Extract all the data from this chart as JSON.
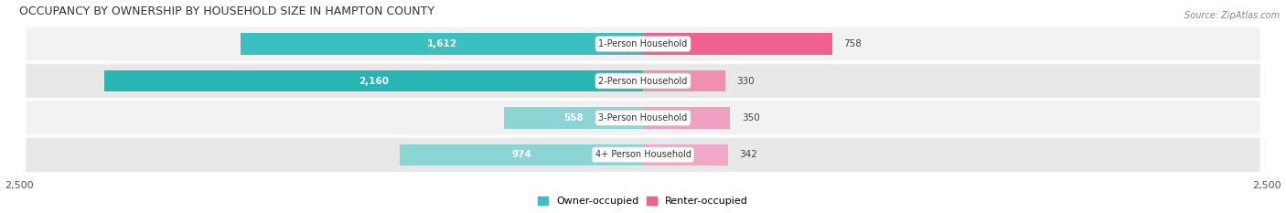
{
  "title": "OCCUPANCY BY OWNERSHIP BY HOUSEHOLD SIZE IN HAMPTON COUNTY",
  "source": "Source: ZipAtlas.com",
  "categories": [
    "1-Person Household",
    "2-Person Household",
    "3-Person Household",
    "4+ Person Household"
  ],
  "owner_values": [
    1612,
    2160,
    558,
    974
  ],
  "renter_values": [
    758,
    330,
    350,
    342
  ],
  "owner_colors": [
    "#3dbfbf",
    "#2ab5b5",
    "#8dd5d5",
    "#8dd5d5"
  ],
  "renter_colors": [
    "#f06090",
    "#f090b0",
    "#f0a0c0",
    "#f0a8c8"
  ],
  "row_bg_colors": [
    "#f2f2f2",
    "#e8e8e8",
    "#f2f2f2",
    "#e8e8e8"
  ],
  "axis_max": 2500,
  "title_fontsize": 9,
  "tick_fontsize": 8,
  "bar_label_fontsize": 7.5,
  "category_fontsize": 7,
  "legend_fontsize": 8,
  "source_fontsize": 7,
  "bg_color": "#ffffff"
}
